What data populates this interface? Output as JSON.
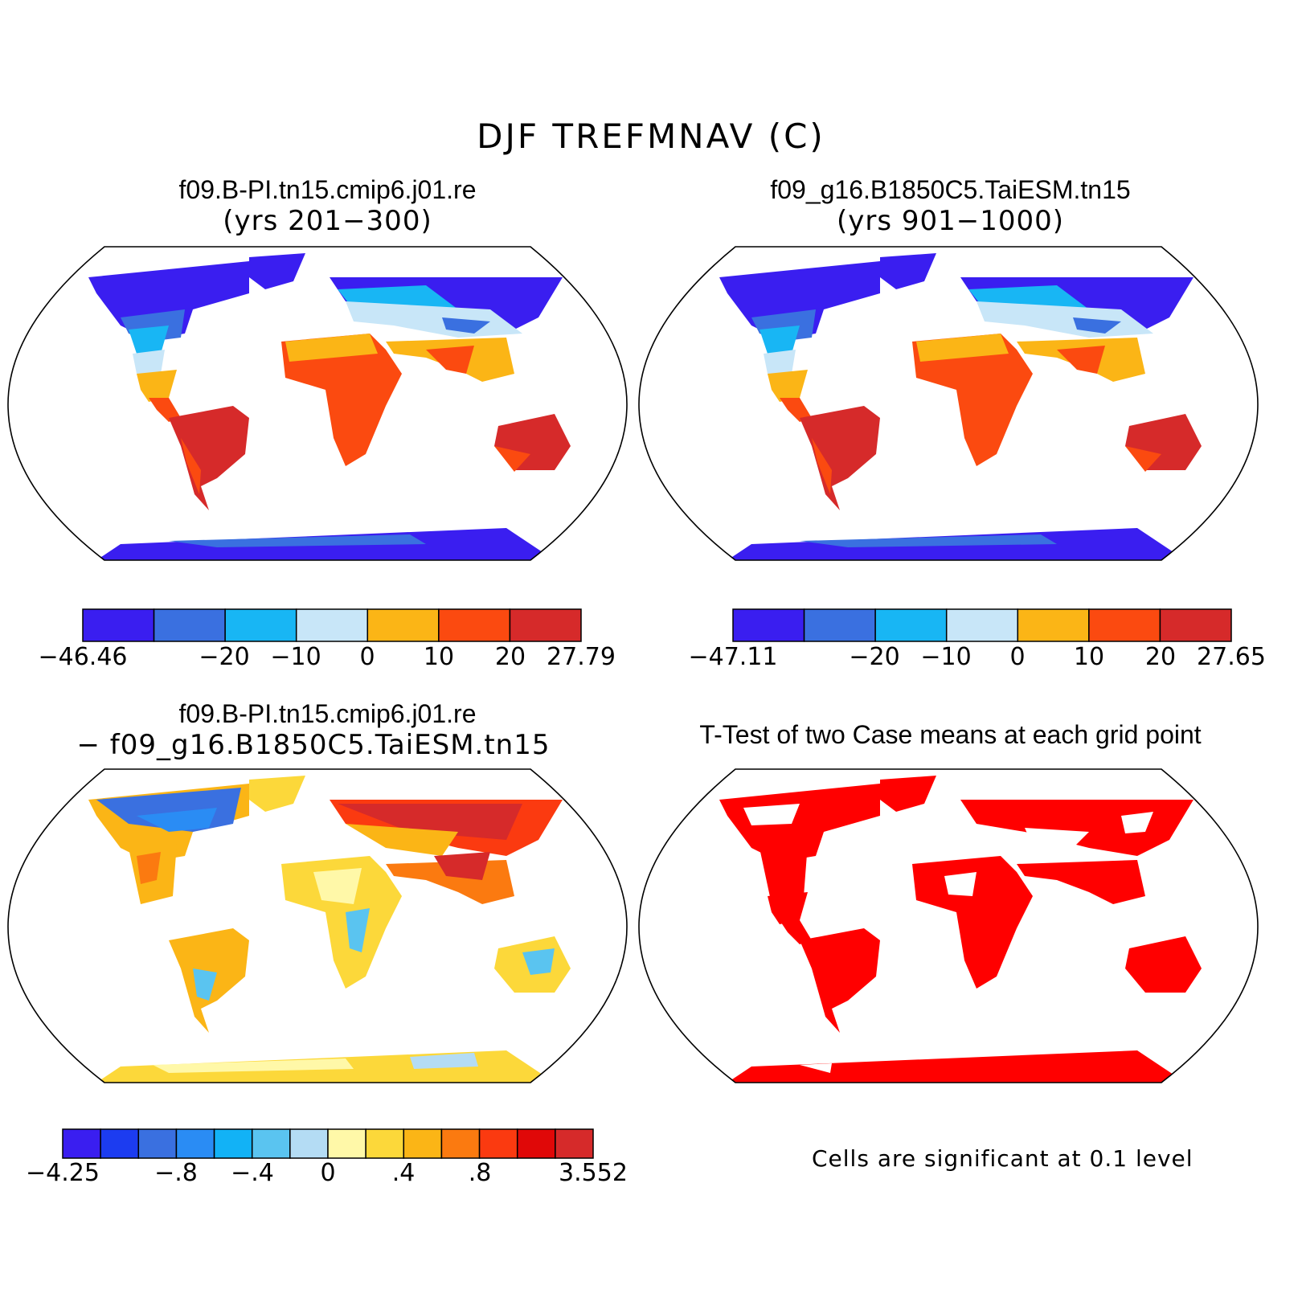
{
  "title": "DJF TREFMNAV (C)",
  "panels": [
    {
      "id": "case1",
      "title": "f09.B-PI.tn15.cmip6.j01.re",
      "subtitle": "(yrs 201−300)",
      "colorbar": {
        "colors": [
          "#3a1ef0",
          "#3a70e0",
          "#18b6f4",
          "#c8e6f8",
          "#fbb516",
          "#fb4a10",
          "#d62a2a"
        ],
        "labels": [
          "−46.46",
          "−20",
          "−10",
          "0",
          "10",
          "20",
          "27.79"
        ]
      }
    },
    {
      "id": "case2",
      "title": "f09_g16.B1850C5.TaiESM.tn15",
      "subtitle": "(yrs 901−1000)",
      "colorbar": {
        "colors": [
          "#3a1ef0",
          "#3a70e0",
          "#18b6f4",
          "#c8e6f8",
          "#fbb516",
          "#fb4a10",
          "#d62a2a"
        ],
        "labels": [
          "−47.11",
          "−20",
          "−10",
          "0",
          "10",
          "20",
          "27.65"
        ]
      }
    },
    {
      "id": "diff",
      "title": "f09.B-PI.tn15.cmip6.j01.re",
      "subtitle": "− f09_g16.B1850C5.TaiESM.tn15",
      "colorbar": {
        "colors": [
          "#3a1ef0",
          "#1c3cf0",
          "#3a70e0",
          "#2a8cf4",
          "#12b2f6",
          "#5ac4f0",
          "#b4dcf4",
          "#fff8a8",
          "#fcd83a",
          "#fbb516",
          "#fb7a10",
          "#fb3a10",
          "#e00808",
          "#d62a2a"
        ],
        "labels": [
          "−4.25",
          "−.8",
          "−.4",
          "0",
          ".4",
          ".8",
          "3.552"
        ]
      }
    },
    {
      "id": "ttest",
      "title": "T-Test of two Case means at each grid point",
      "note": "Cells are significant at 0.1 level",
      "significant_color": "#ff0000"
    }
  ]
}
